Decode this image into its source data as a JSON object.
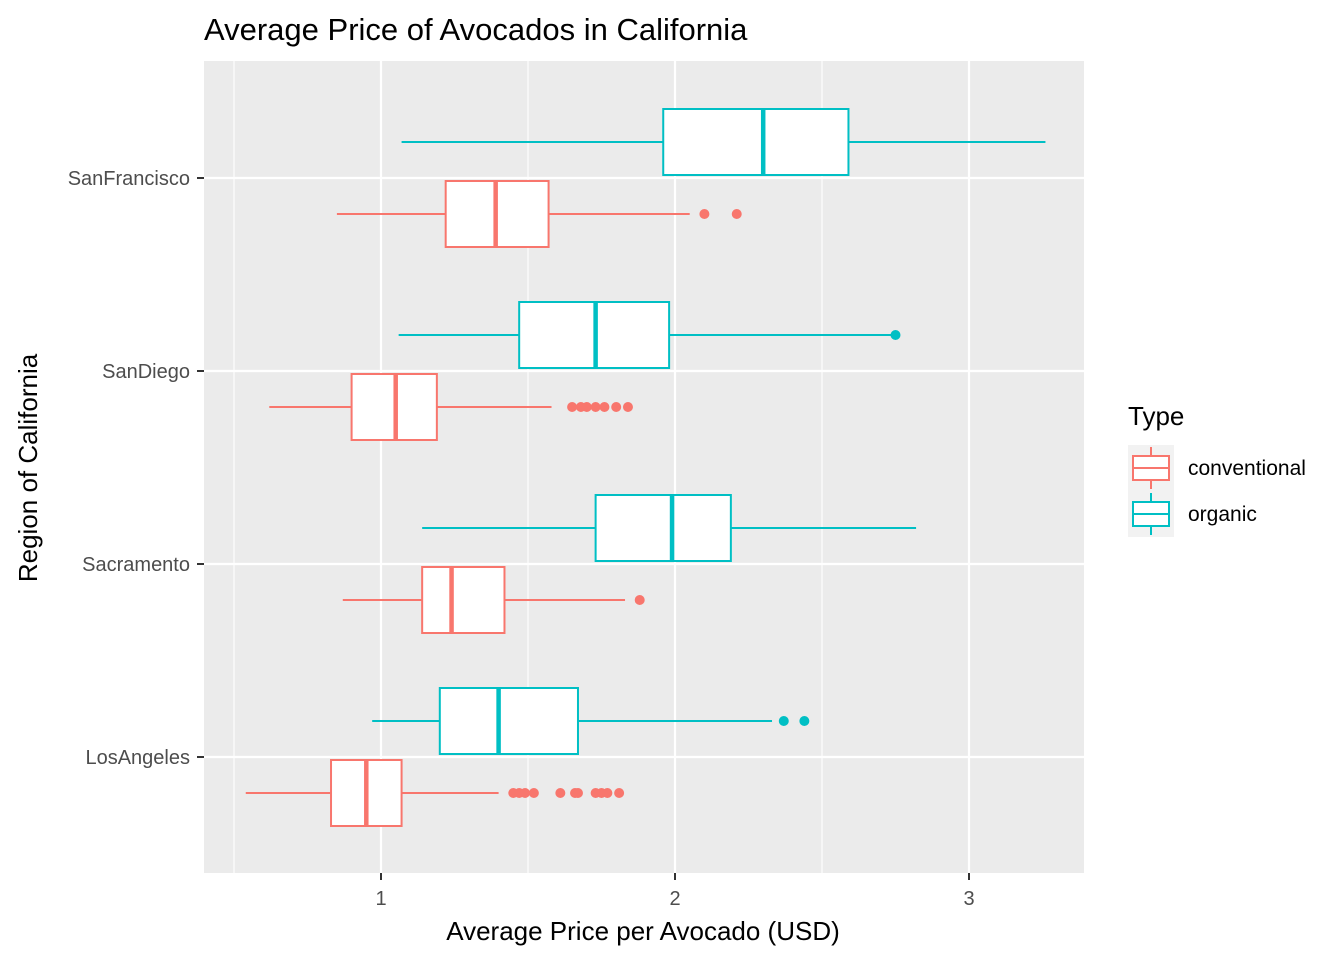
{
  "chart_data": {
    "type": "boxplot",
    "orientation": "horizontal",
    "title": "Average Price of Avocados in California",
    "xlabel": "Average Price per Avocado (USD)",
    "ylabel": "Region of California",
    "xlim": [
      0.5,
      3.39
    ],
    "xticks": [
      "1",
      "2",
      "3"
    ],
    "grid": true,
    "legend": {
      "title": "Type",
      "position": "right"
    },
    "categories": [
      "LosAngeles",
      "Sacramento",
      "SanDiego",
      "SanFrancisco"
    ],
    "series": [
      {
        "name": "conventional",
        "color": "#F8766D",
        "boxes": [
          {
            "category": "LosAngeles",
            "whisker_low": 0.54,
            "q1": 0.83,
            "median": 0.95,
            "q3": 1.07,
            "whisker_high": 1.4,
            "outliers": [
              1.45,
              1.47,
              1.49,
              1.52,
              1.61,
              1.66,
              1.67,
              1.73,
              1.75,
              1.77,
              1.81
            ]
          },
          {
            "category": "Sacramento",
            "whisker_low": 0.87,
            "q1": 1.14,
            "median": 1.24,
            "q3": 1.42,
            "whisker_high": 1.83,
            "outliers": [
              1.88
            ]
          },
          {
            "category": "SanDiego",
            "whisker_low": 0.62,
            "q1": 0.9,
            "median": 1.05,
            "q3": 1.19,
            "whisker_high": 1.58,
            "outliers": [
              1.65,
              1.68,
              1.7,
              1.73,
              1.76,
              1.8,
              1.84
            ]
          },
          {
            "category": "SanFrancisco",
            "whisker_low": 0.85,
            "q1": 1.22,
            "median": 1.39,
            "q3": 1.57,
            "whisker_high": 2.05,
            "outliers": [
              2.1,
              2.21
            ]
          }
        ]
      },
      {
        "name": "organic",
        "color": "#00BFC4",
        "boxes": [
          {
            "category": "LosAngeles",
            "whisker_low": 0.97,
            "q1": 1.2,
            "median": 1.4,
            "q3": 1.67,
            "whisker_high": 2.33,
            "outliers": [
              2.37,
              2.44
            ]
          },
          {
            "category": "Sacramento",
            "whisker_low": 1.14,
            "q1": 1.73,
            "median": 1.99,
            "q3": 2.19,
            "whisker_high": 2.82,
            "outliers": []
          },
          {
            "category": "SanDiego",
            "whisker_low": 1.06,
            "q1": 1.47,
            "median": 1.73,
            "q3": 1.98,
            "whisker_high": 2.74,
            "outliers": [
              2.75
            ]
          },
          {
            "category": "SanFrancisco",
            "whisker_low": 1.07,
            "q1": 1.96,
            "median": 2.3,
            "q3": 2.59,
            "whisker_high": 3.26,
            "outliers": []
          }
        ]
      }
    ]
  },
  "colors": {
    "panel_background": "#EBEBEB",
    "grid_major": "#FFFFFF",
    "conventional": "#F8766D",
    "organic": "#00BFC4"
  }
}
